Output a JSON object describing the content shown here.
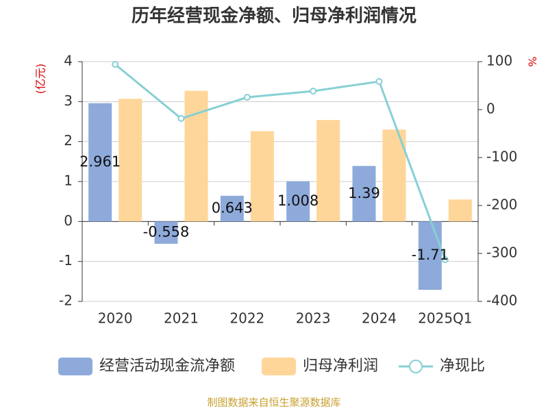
{
  "chart_data": {
    "type": "bar-line",
    "title": "历年经营现金净额、归母净利润情况",
    "y_label": "(亿元)",
    "y2_label": "%",
    "source": "制图数据来自恒生聚源数据库",
    "categories": [
      "2020",
      "2021",
      "2022",
      "2023",
      "2024",
      "2025Q1"
    ],
    "series": [
      {
        "name": "经营活动现金流净额",
        "type": "bar",
        "color": "#8eaadb",
        "values": [
          2.961,
          -0.558,
          0.643,
          1.008,
          1.39,
          -1.71
        ],
        "value_labels": [
          "2.961",
          "-0.558",
          "0.643",
          "1.008",
          "1.39",
          "-1.71"
        ]
      },
      {
        "name": "归母净利润",
        "type": "bar",
        "color": "#ffd699",
        "values": [
          3.07,
          3.27,
          2.26,
          2.54,
          2.3,
          0.55
        ]
      },
      {
        "name": "净现比",
        "type": "line",
        "axis": "y2",
        "color": "#86d0d4",
        "values": [
          94.3,
          -18.6,
          25.7,
          38.6,
          58.6,
          -312.9
        ]
      }
    ],
    "ylim": [
      -2,
      4
    ],
    "yticks": [
      -2,
      -1,
      0,
      1,
      2,
      3,
      4
    ],
    "y2lim": [
      -400,
      100
    ],
    "y2ticks": [
      -400,
      -300,
      -200,
      -100,
      0,
      100
    ],
    "grid": true
  }
}
